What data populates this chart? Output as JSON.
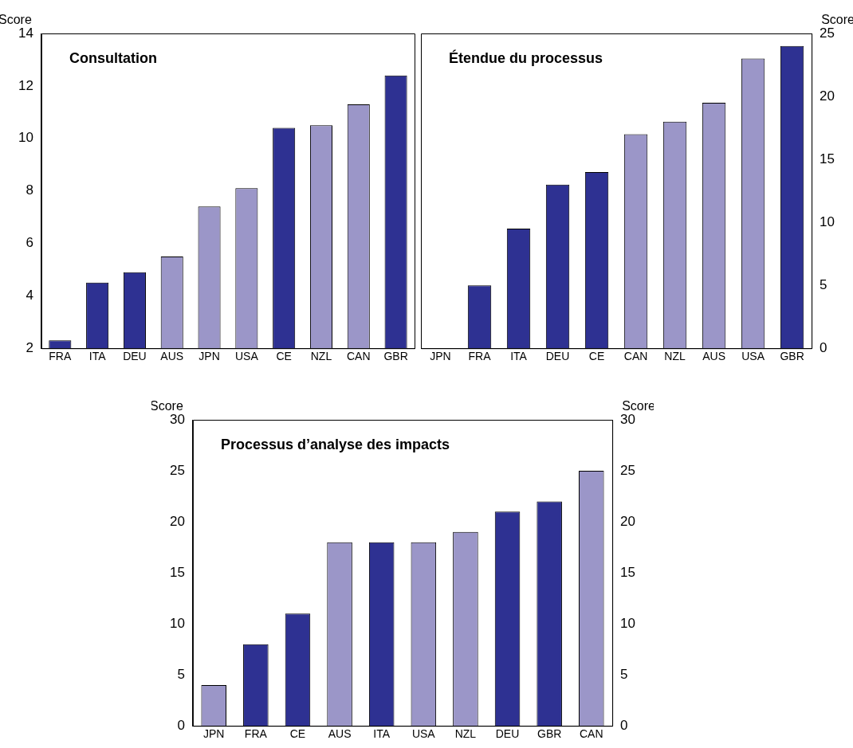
{
  "chart_data": [
    {
      "type": "bar",
      "title": "Consultation",
      "ylabel": "Score",
      "categories": [
        "FRA",
        "ITA",
        "DEU",
        "AUS",
        "JPN",
        "USA",
        "CE",
        "NZL",
        "CAN",
        "GBR"
      ],
      "series": [
        {
          "colors": [
            "#2e3192",
            "#2e3192",
            "#2e3192",
            "#9b96c8",
            "#9b96c8",
            "#9b96c8",
            "#2e3192",
            "#9b96c8",
            "#9b96c8",
            "#2e3192"
          ],
          "values": [
            2.3,
            4.5,
            4.9,
            5.5,
            7.4,
            8.1,
            10.4,
            10.5,
            11.3,
            12.4
          ]
        }
      ],
      "ylim": [
        2,
        14
      ],
      "yticks": [
        2,
        4,
        6,
        8,
        10,
        12,
        14
      ]
    },
    {
      "type": "bar",
      "title": "Étendue du processus",
      "y2label": "Score",
      "categories": [
        "JPN",
        "FRA",
        "ITA",
        "DEU",
        "CE",
        "CAN",
        "NZL",
        "AUS",
        "USA",
        "GBR"
      ],
      "series": [
        {
          "axis": "y2",
          "colors": [
            "#9b96c8",
            "#2e3192",
            "#2e3192",
            "#2e3192",
            "#2e3192",
            "#9b96c8",
            "#9b96c8",
            "#9b96c8",
            "#9b96c8",
            "#2e3192"
          ],
          "values": [
            0,
            5,
            9.5,
            13,
            14,
            17,
            18,
            19.5,
            23,
            24
          ]
        }
      ],
      "y2lim": [
        0,
        25
      ],
      "y2ticks": [
        0,
        5,
        10,
        15,
        20,
        25
      ]
    },
    {
      "type": "bar",
      "title": "Processus d’analyse des impacts",
      "ylabel": "Score",
      "y2label": "Score",
      "categories": [
        "JPN",
        "FRA",
        "CE",
        "AUS",
        "ITA",
        "USA",
        "NZL",
        "DEU",
        "GBR",
        "CAN"
      ],
      "series": [
        {
          "colors": [
            "#9b96c8",
            "#2e3192",
            "#2e3192",
            "#9b96c8",
            "#2e3192",
            "#9b96c8",
            "#9b96c8",
            "#2e3192",
            "#2e3192",
            "#9b96c8"
          ],
          "values": [
            4,
            8,
            11,
            18,
            18,
            18,
            19,
            21,
            22,
            25
          ]
        }
      ],
      "ylim": [
        0,
        30
      ],
      "yticks": [
        0,
        5,
        10,
        15,
        20,
        25,
        30
      ],
      "y2lim": [
        0,
        30
      ],
      "y2ticks": [
        0,
        5,
        10,
        15,
        20,
        25,
        30
      ]
    }
  ]
}
